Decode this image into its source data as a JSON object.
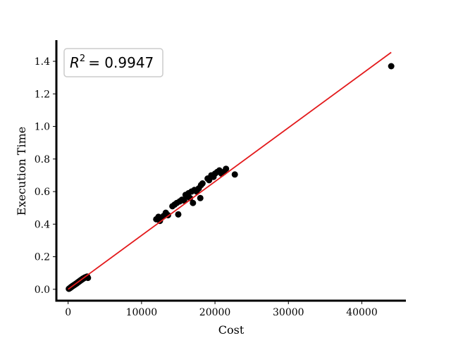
{
  "chart_data": {
    "type": "scatter",
    "title": "",
    "xlabel": "Cost",
    "ylabel": "Execution Time",
    "xlim": [
      -1600,
      46000
    ],
    "ylim": [
      -0.07,
      1.53
    ],
    "xticks": [
      0,
      10000,
      20000,
      30000,
      40000
    ],
    "xtick_labels": [
      "0",
      "10000",
      "20000",
      "30000",
      "40000"
    ],
    "yticks": [
      0.0,
      0.2,
      0.4,
      0.6,
      0.8,
      1.0,
      1.2,
      1.4
    ],
    "ytick_labels": [
      "0.0",
      "0.2",
      "0.4",
      "0.6",
      "0.8",
      "1.0",
      "1.2",
      "1.4"
    ],
    "grid": false,
    "point_color": "#000000",
    "fit_color": "#e31a1c",
    "annotation": {
      "label": "R",
      "exponent": "2",
      "value": "= 0.9947",
      "placement": "top-left"
    },
    "fit_line": {
      "x": [
        0,
        44000
      ],
      "y": [
        0.0,
        1.455
      ]
    },
    "series": [
      {
        "x": [
          100,
          200,
          300,
          350,
          400,
          450,
          500,
          550,
          600,
          650,
          700,
          750,
          800,
          850,
          900,
          950,
          1000,
          1050,
          1100,
          1150,
          1200,
          1250,
          1300,
          1350,
          1400,
          1450,
          1500,
          1550,
          1600,
          1650,
          1700,
          1750,
          1800,
          1850,
          1900,
          1950,
          2000,
          2050,
          2100,
          2150,
          2200,
          2250,
          2300,
          2350,
          2400,
          2450,
          2500,
          2550,
          2600,
          2700,
          12000,
          12300,
          12500,
          12700,
          13000,
          13300,
          13600,
          14200,
          14500,
          14800,
          15000,
          15200,
          15500,
          15800,
          16000,
          16200,
          16400,
          16600,
          16800,
          17000,
          17200,
          17500,
          17800,
          18000,
          18100,
          18300,
          19000,
          19200,
          19500,
          19800,
          20000,
          20300,
          20600,
          20900,
          21200,
          21500,
          22700,
          44000
        ],
        "y": [
          0.003,
          0.006,
          0.009,
          0.011,
          0.013,
          0.015,
          0.016,
          0.018,
          0.02,
          0.021,
          0.022,
          0.024,
          0.026,
          0.027,
          0.028,
          0.03,
          0.032,
          0.033,
          0.034,
          0.036,
          0.038,
          0.04,
          0.041,
          0.043,
          0.045,
          0.046,
          0.048,
          0.05,
          0.051,
          0.053,
          0.055,
          0.056,
          0.058,
          0.059,
          0.061,
          0.063,
          0.064,
          0.066,
          0.067,
          0.068,
          0.07,
          0.071,
          0.072,
          0.073,
          0.074,
          0.075,
          0.076,
          0.077,
          0.078,
          0.07,
          0.43,
          0.445,
          0.42,
          0.44,
          0.45,
          0.47,
          0.455,
          0.51,
          0.52,
          0.53,
          0.46,
          0.54,
          0.55,
          0.545,
          0.58,
          0.57,
          0.59,
          0.56,
          0.6,
          0.53,
          0.61,
          0.6,
          0.62,
          0.56,
          0.64,
          0.65,
          0.68,
          0.67,
          0.7,
          0.69,
          0.71,
          0.72,
          0.73,
          0.71,
          0.72,
          0.74,
          0.705,
          1.37
        ]
      }
    ]
  }
}
